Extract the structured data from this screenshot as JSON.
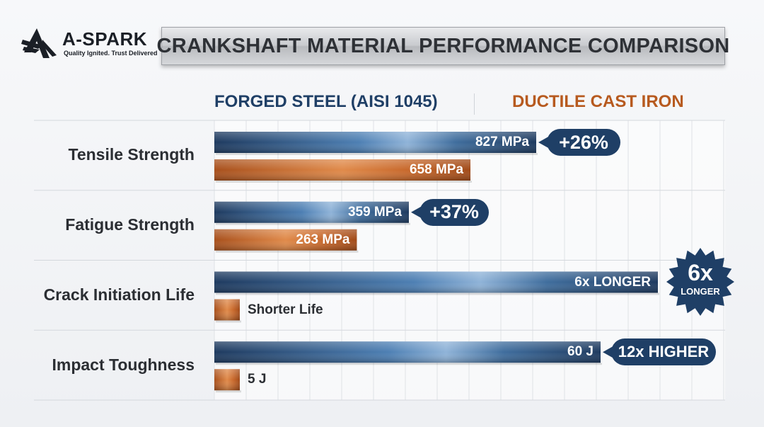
{
  "brand": {
    "name": "A-SPARK",
    "tagline": "Quality Ignited. Trust Delivered"
  },
  "title": "CRANKSHAFT MATERIAL PERFORMANCE COMPARISON",
  "legend": {
    "steel": "FORGED STEEL (AISI 1045)",
    "iron": "DUCTILE CAST IRON"
  },
  "colors": {
    "steel": "#1f3f66",
    "iron": "#c7662a",
    "badge": "#1f3f66"
  },
  "chart_data": {
    "type": "bar",
    "orientation": "horizontal",
    "categories": [
      "Tensile Strength",
      "Fatigue Strength",
      "Crack Initiation Life",
      "Impact Toughness"
    ],
    "series": [
      {
        "name": "FORGED STEEL (AISI 1045)",
        "values": [
          827,
          359,
          6,
          60
        ],
        "labels": [
          "827 MPa",
          "359 MPa",
          "6x LONGER",
          "60 J"
        ]
      },
      {
        "name": "DUCTILE CAST IRON",
        "values": [
          658,
          263,
          1,
          5
        ],
        "labels": [
          "658 MPa",
          "263 MPa",
          "Shorter Life",
          "5 J"
        ]
      }
    ],
    "badges": [
      "+26%",
      "+37%",
      "6x LONGER",
      "12x HIGHER"
    ],
    "starburst": {
      "big": "6x",
      "small": "LONGER"
    },
    "grid": true
  }
}
